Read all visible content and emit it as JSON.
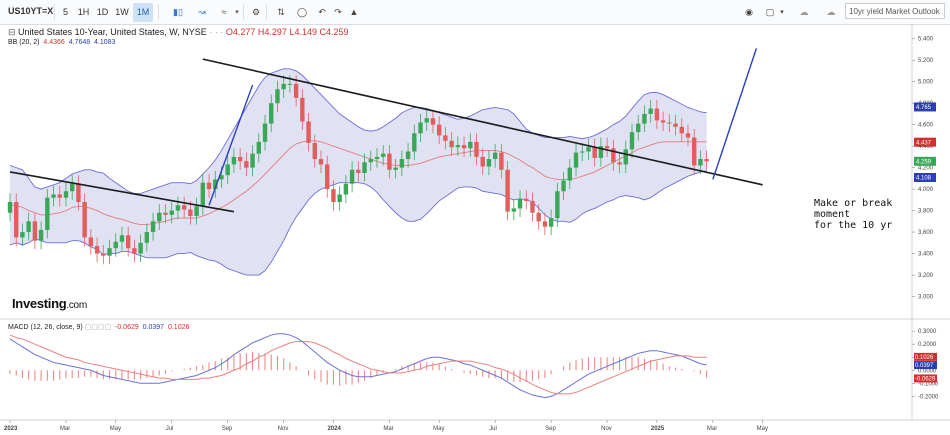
{
  "toolbar": {
    "ticker": "US10YT=X",
    "intervals": [
      "5",
      "1H",
      "1D",
      "1W",
      "1M"
    ],
    "active_interval": "1W",
    "layout_name": "10yr yield Market Outlook"
  },
  "header": {
    "title": "United States 10-Year, United States, W, NYSE",
    "dots": "· · ·",
    "open": "O4.277",
    "high": "H4.297",
    "low": "L4.149",
    "close": "C4.259",
    "bb_label": "BB (20, 2)",
    "bb_mid": "4.4366",
    "bb_upper": "4.7648",
    "bb_lower": "4.1083"
  },
  "macd_header": {
    "label": "MACD (12, 26, close, 9)",
    "hist": "-0.0629",
    "macd": "0.0397",
    "signal": "0.1026"
  },
  "logo": {
    "name": "Investing",
    "suffix": ".com"
  },
  "annotation": [
    "Make or break",
    "moment",
    "for the 10 yr"
  ],
  "colors": {
    "up": "#3aa757",
    "down": "#e35d5d",
    "band_fill": "#dcdcf2",
    "band_edge": "#6a6fd8",
    "bb_mid": "#e57b7b",
    "macd_line": "#6a72d8",
    "signal_line": "#e9827f",
    "hist": "#ec8a87",
    "trendline": "#1c1c1c",
    "channel": "#2b3fc4"
  },
  "chart_data": [
    {
      "type": "candlestick",
      "title": "United States 10-Year, United States, W, NYSE",
      "ylabel": "",
      "ylim": [
        2.8,
        5.5
      ],
      "yticks": [
        3.0,
        3.2,
        3.4,
        3.6,
        3.8,
        4.0,
        4.2,
        4.4,
        4.6,
        4.8,
        5.0,
        5.2,
        5.4
      ],
      "ytick_labels": [
        "3.000",
        "3.200",
        "3.400",
        "3.600",
        "3.800",
        "4.000",
        "4.200",
        "4.400",
        "4.600",
        "4.800",
        "5.000",
        "5.200",
        "5.400"
      ],
      "x_labels": [
        "2023",
        "Mar",
        "May",
        "Jul",
        "Sep",
        "Nov",
        "2024",
        "Mar",
        "May",
        "Jul",
        "Sep",
        "Nov",
        "2025",
        "Mar",
        "May"
      ],
      "x_label_weeks": [
        0,
        9,
        17,
        26,
        35,
        44,
        52,
        61,
        69,
        78,
        87,
        96,
        104,
        113,
        121
      ],
      "bold_x_labels": [
        "2023",
        "2024",
        "2025"
      ],
      "close": [
        3.88,
        3.55,
        3.6,
        3.7,
        3.52,
        3.62,
        3.92,
        3.95,
        3.92,
        3.98,
        4.05,
        3.88,
        3.55,
        3.47,
        3.4,
        3.38,
        3.45,
        3.51,
        3.57,
        3.45,
        3.4,
        3.5,
        3.6,
        3.7,
        3.78,
        3.76,
        3.8,
        3.85,
        3.81,
        3.75,
        3.84,
        4.06,
        4.0,
        4.09,
        4.13,
        4.23,
        4.3,
        4.26,
        4.2,
        4.33,
        4.44,
        4.61,
        4.8,
        4.93,
        4.98,
        4.98,
        4.85,
        4.63,
        4.43,
        4.28,
        4.23,
        4.0,
        3.88,
        3.95,
        4.05,
        4.18,
        4.15,
        4.25,
        4.28,
        4.3,
        4.33,
        4.18,
        4.2,
        4.28,
        4.35,
        4.52,
        4.62,
        4.66,
        4.6,
        4.5,
        4.45,
        4.39,
        4.41,
        4.38,
        4.44,
        4.3,
        4.21,
        4.28,
        4.34,
        4.18,
        3.79,
        3.82,
        3.91,
        3.89,
        3.78,
        3.7,
        3.65,
        3.73,
        3.98,
        4.08,
        4.2,
        4.34,
        4.35,
        4.39,
        4.29,
        4.4,
        4.38,
        4.25,
        4.23,
        4.37,
        4.53,
        4.61,
        4.7,
        4.75,
        4.64,
        4.62,
        4.61,
        4.58,
        4.52,
        4.48,
        4.22,
        4.28,
        4.26
      ],
      "upper_band": [
        4.22,
        4.2,
        4.18,
        4.1,
        4.02,
        4.0,
        4.02,
        4.04,
        4.06,
        4.1,
        4.14,
        4.16,
        4.18,
        4.18,
        4.16,
        4.15,
        4.1,
        4.06,
        4.02,
        3.98,
        3.96,
        3.96,
        3.98,
        4.0,
        4.02,
        4.04,
        4.06,
        4.06,
        4.06,
        4.05,
        4.08,
        4.14,
        4.2,
        4.27,
        4.36,
        4.46,
        4.56,
        4.66,
        4.76,
        4.86,
        4.96,
        5.04,
        5.08,
        5.1,
        5.12,
        5.12,
        5.1,
        5.06,
        5.0,
        4.94,
        4.88,
        4.82,
        4.76,
        4.7,
        4.66,
        4.62,
        4.58,
        4.55,
        4.54,
        4.55,
        4.58,
        4.62,
        4.66,
        4.71,
        4.74,
        4.76,
        4.76,
        4.75,
        4.73,
        4.71,
        4.69,
        4.67,
        4.65,
        4.66,
        4.68,
        4.71,
        4.74,
        4.75,
        4.76,
        4.75,
        4.74,
        4.7,
        4.63,
        4.56,
        4.52,
        4.5,
        4.48,
        4.48,
        4.48,
        4.48,
        4.49,
        4.48,
        4.47,
        4.48,
        4.5,
        4.53,
        4.56,
        4.6,
        4.63,
        4.68,
        4.75,
        4.82,
        4.88,
        4.9,
        4.9,
        4.88,
        4.85,
        4.82,
        4.79,
        4.76,
        4.74,
        4.72,
        4.71
      ],
      "middle_band": [
        3.85,
        3.85,
        3.83,
        3.8,
        3.78,
        3.76,
        3.76,
        3.77,
        3.78,
        3.8,
        3.83,
        3.84,
        3.84,
        3.82,
        3.8,
        3.77,
        3.75,
        3.73,
        3.72,
        3.7,
        3.68,
        3.67,
        3.67,
        3.68,
        3.69,
        3.7,
        3.72,
        3.73,
        3.73,
        3.73,
        3.73,
        3.75,
        3.77,
        3.8,
        3.83,
        3.86,
        3.9,
        3.94,
        3.98,
        4.03,
        4.08,
        4.14,
        4.2,
        4.26,
        4.32,
        4.38,
        4.42,
        4.44,
        4.45,
        4.45,
        4.44,
        4.42,
        4.4,
        4.38,
        4.36,
        4.34,
        4.32,
        4.3,
        4.28,
        4.26,
        4.24,
        4.23,
        4.22,
        4.22,
        4.22,
        4.23,
        4.24,
        4.26,
        4.28,
        4.3,
        4.31,
        4.32,
        4.33,
        4.34,
        4.35,
        4.36,
        4.36,
        4.36,
        4.36,
        4.35,
        4.33,
        4.3,
        4.27,
        4.23,
        4.2,
        4.16,
        4.12,
        4.1,
        4.09,
        4.09,
        4.09,
        4.1,
        4.12,
        4.14,
        4.16,
        4.19,
        4.22,
        4.25,
        4.28,
        4.31,
        4.34,
        4.37,
        4.39,
        4.41,
        4.43,
        4.44,
        4.44,
        4.44,
        4.44,
        4.44,
        4.44,
        4.44,
        4.44
      ],
      "lower_band": [
        3.48,
        3.5,
        3.48,
        3.5,
        3.54,
        3.52,
        3.5,
        3.5,
        3.5,
        3.5,
        3.52,
        3.52,
        3.5,
        3.46,
        3.44,
        3.39,
        3.4,
        3.4,
        3.42,
        3.42,
        3.4,
        3.38,
        3.36,
        3.36,
        3.36,
        3.36,
        3.38,
        3.4,
        3.4,
        3.41,
        3.38,
        3.36,
        3.34,
        3.33,
        3.3,
        3.26,
        3.24,
        3.22,
        3.2,
        3.2,
        3.2,
        3.24,
        3.32,
        3.42,
        3.52,
        3.64,
        3.74,
        3.82,
        3.9,
        3.96,
        4.0,
        4.02,
        4.04,
        4.06,
        4.06,
        4.06,
        4.06,
        4.05,
        4.02,
        3.97,
        3.9,
        3.84,
        3.78,
        3.73,
        3.7,
        3.7,
        3.72,
        3.77,
        3.83,
        3.89,
        3.93,
        3.97,
        4.01,
        4.02,
        4.02,
        4.01,
        3.98,
        3.97,
        3.96,
        3.95,
        3.92,
        3.9,
        3.91,
        3.9,
        3.88,
        3.82,
        3.76,
        3.72,
        3.7,
        3.7,
        3.69,
        3.72,
        3.77,
        3.8,
        3.82,
        3.85,
        3.88,
        3.9,
        3.93,
        3.94,
        3.93,
        3.92,
        3.9,
        3.92,
        3.96,
        4.0,
        4.03,
        4.06,
        4.09,
        4.12,
        4.14,
        4.16,
        4.17
      ],
      "price_tags": [
        "4.765",
        "4.437",
        "4.259",
        "4.108"
      ],
      "trendlines": [
        {
          "from": [
            0,
            4.16
          ],
          "to": [
            36,
            3.79
          ]
        },
        {
          "from": [
            31,
            5.21
          ],
          "to": [
            121,
            4.04
          ]
        }
      ],
      "channel_lines": [
        {
          "from": [
            32,
            3.85
          ],
          "to": [
            39,
            4.97
          ]
        },
        {
          "from": [
            113,
            4.09
          ],
          "to": [
            120,
            5.31
          ]
        }
      ]
    },
    {
      "type": "line",
      "title": "MACD (12, 26, close, 9)",
      "ylim": [
        -0.32,
        0.37
      ],
      "yticks": [
        0.3,
        0.2,
        0.1,
        0.0,
        -0.1,
        -0.2
      ],
      "ytick_labels": [
        "0.3000",
        "0.2000",
        "0.1000",
        "0.0000",
        "-0.1000",
        "-0.2000"
      ],
      "series": [
        {
          "key": "macd",
          "values": [
            0.24,
            0.21,
            0.18,
            0.15,
            0.12,
            0.1,
            0.08,
            0.06,
            0.05,
            0.04,
            0.03,
            0.02,
            0.01,
            0.0,
            -0.02,
            -0.04,
            -0.05,
            -0.06,
            -0.07,
            -0.08,
            -0.09,
            -0.1,
            -0.1,
            -0.1,
            -0.1,
            -0.09,
            -0.08,
            -0.07,
            -0.06,
            -0.05,
            -0.04,
            -0.02,
            0.0,
            0.02,
            0.05,
            0.08,
            0.12,
            0.15,
            0.18,
            0.21,
            0.23,
            0.25,
            0.27,
            0.28,
            0.28,
            0.27,
            0.25,
            0.22,
            0.18,
            0.14,
            0.1,
            0.06,
            0.03,
            0.0,
            -0.02,
            -0.04,
            -0.05,
            -0.05,
            -0.05,
            -0.04,
            -0.03,
            -0.02,
            -0.01,
            0.01,
            0.03,
            0.05,
            0.07,
            0.09,
            0.1,
            0.1,
            0.09,
            0.08,
            0.07,
            0.05,
            0.04,
            0.02,
            0.0,
            -0.02,
            -0.04,
            -0.06,
            -0.09,
            -0.12,
            -0.15,
            -0.17,
            -0.19,
            -0.2,
            -0.21,
            -0.2,
            -0.18,
            -0.15,
            -0.12,
            -0.09,
            -0.06,
            -0.03,
            -0.01,
            0.01,
            0.03,
            0.05,
            0.07,
            0.09,
            0.11,
            0.13,
            0.14,
            0.15,
            0.15,
            0.14,
            0.13,
            0.12,
            0.11,
            0.09,
            0.07,
            0.05,
            0.04
          ]
        },
        {
          "key": "signal",
          "values": [
            0.27,
            0.25,
            0.24,
            0.22,
            0.2,
            0.18,
            0.16,
            0.14,
            0.12,
            0.1,
            0.09,
            0.08,
            0.06,
            0.05,
            0.04,
            0.03,
            0.02,
            0.01,
            0.0,
            -0.01,
            -0.02,
            -0.03,
            -0.04,
            -0.05,
            -0.06,
            -0.06,
            -0.07,
            -0.07,
            -0.07,
            -0.07,
            -0.07,
            -0.06,
            -0.06,
            -0.05,
            -0.04,
            -0.02,
            0.0,
            0.02,
            0.05,
            0.07,
            0.1,
            0.12,
            0.15,
            0.17,
            0.19,
            0.21,
            0.22,
            0.22,
            0.22,
            0.21,
            0.19,
            0.17,
            0.14,
            0.12,
            0.09,
            0.07,
            0.05,
            0.03,
            0.01,
            0.0,
            -0.01,
            -0.02,
            -0.02,
            -0.02,
            -0.01,
            0.0,
            0.01,
            0.03,
            0.04,
            0.05,
            0.06,
            0.07,
            0.07,
            0.07,
            0.07,
            0.06,
            0.05,
            0.04,
            0.02,
            0.01,
            -0.01,
            -0.03,
            -0.06,
            -0.08,
            -0.11,
            -0.13,
            -0.15,
            -0.17,
            -0.18,
            -0.18,
            -0.18,
            -0.17,
            -0.15,
            -0.13,
            -0.11,
            -0.09,
            -0.07,
            -0.05,
            -0.03,
            -0.01,
            0.01,
            0.03,
            0.05,
            0.07,
            0.08,
            0.09,
            0.1,
            0.11,
            0.11,
            0.11,
            0.1,
            0.1,
            0.1
          ]
        },
        {
          "key": "histogram",
          "values": [
            -0.03,
            -0.04,
            -0.06,
            -0.07,
            -0.08,
            -0.08,
            -0.08,
            -0.08,
            -0.07,
            -0.06,
            -0.06,
            -0.06,
            -0.05,
            -0.05,
            -0.06,
            -0.07,
            -0.07,
            -0.07,
            -0.07,
            -0.07,
            -0.07,
            -0.07,
            -0.06,
            -0.05,
            -0.04,
            -0.03,
            -0.01,
            0.0,
            0.01,
            0.02,
            0.03,
            0.04,
            0.06,
            0.07,
            0.09,
            0.1,
            0.12,
            0.13,
            0.13,
            0.14,
            0.13,
            0.13,
            0.12,
            0.11,
            0.09,
            0.06,
            0.03,
            0.0,
            -0.04,
            -0.07,
            -0.09,
            -0.11,
            -0.11,
            -0.12,
            -0.11,
            -0.11,
            -0.1,
            -0.08,
            -0.06,
            -0.04,
            -0.02,
            0.0,
            0.01,
            0.03,
            0.04,
            0.05,
            0.06,
            0.06,
            0.06,
            0.05,
            0.03,
            0.01,
            0.0,
            -0.02,
            -0.03,
            -0.04,
            -0.05,
            -0.06,
            -0.06,
            -0.07,
            -0.08,
            -0.09,
            -0.09,
            -0.09,
            -0.08,
            -0.07,
            -0.06,
            -0.03,
            0.0,
            0.03,
            0.06,
            0.08,
            0.09,
            0.1,
            0.1,
            0.1,
            0.1,
            0.1,
            0.1,
            0.1,
            0.1,
            0.1,
            0.09,
            0.08,
            0.07,
            0.05,
            0.03,
            0.02,
            0.01,
            0.0,
            -0.01,
            -0.03,
            -0.06
          ]
        }
      ],
      "value_tags": [
        "0.1026",
        "0.0397",
        "-0.0629"
      ]
    }
  ]
}
